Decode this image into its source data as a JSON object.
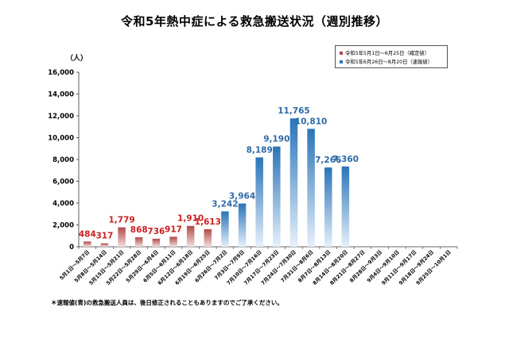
{
  "title": "令和5年熱中症による救急搬送状況（週別推移）",
  "unit_label": "（人）",
  "footnote": "＊速報値(青)の救急搬送人員は、後日修正されることもありますのでご了承ください。",
  "legend": {
    "confirmed": "令和5年5月1日～6月25日（確定値）",
    "preliminary": "令和5年6月26日～8月20日（速報値）"
  },
  "colors": {
    "confirmed_label": "#cc1f1f",
    "preliminary_label": "#2e6aa8",
    "confirmed_bar_top": "#b04a47",
    "confirmed_bar_bottom": "#f3dede",
    "preliminary_bar_top": "#2a74b8",
    "preliminary_bar_bottom": "#e6f0fa"
  },
  "chart_data": {
    "type": "bar",
    "title": "令和5年熱中症による救急搬送状況（週別推移）",
    "ylabel": "（人）",
    "ylim": [
      0,
      16000
    ],
    "yticks": [
      0,
      2000,
      4000,
      6000,
      8000,
      10000,
      12000,
      14000,
      16000
    ],
    "ytick_labels": [
      "0",
      "2,000",
      "4,000",
      "6,000",
      "8,000",
      "10,000",
      "12,000",
      "14,000",
      "16,000"
    ],
    "grid": false,
    "legend_position": "top-right",
    "categories": [
      "5月1日～5月7日",
      "5月8日～5月14日",
      "5月15日～5月21日",
      "5月22日～5月28日",
      "5月29日～6月4日",
      "6月5日～6月11日",
      "6月12日～6月18日",
      "6月19日～6月25日",
      "6月26日～7月2日",
      "7月3日～7月9日",
      "7月10日～7月16日",
      "7月17日～7月23日",
      "7月24日～7月30日",
      "7月31日～8月6日",
      "8月7日～8月13日",
      "8月14日～8月20日",
      "8月21日～8月27日",
      "8月28日～9月3日",
      "9月4日～9月10日",
      "9月11日～9月17日",
      "9月18日～9月24日",
      "9月25日～10月1日"
    ],
    "series": [
      {
        "name": "令和5年5月1日～6月25日（確定値）",
        "values": [
          484,
          317,
          1779,
          868,
          736,
          917,
          1910,
          1613,
          null,
          null,
          null,
          null,
          null,
          null,
          null,
          null,
          null,
          null,
          null,
          null,
          null,
          null
        ]
      },
      {
        "name": "令和5年6月26日～8月20日（速報値）",
        "values": [
          null,
          null,
          null,
          null,
          null,
          null,
          null,
          null,
          3242,
          3964,
          8189,
          9190,
          11765,
          10810,
          7266,
          7360,
          null,
          null,
          null,
          null,
          null,
          null
        ]
      }
    ],
    "data_labels": [
      "484",
      "317",
      "1,779",
      "868",
      "736",
      "917",
      "1,910",
      "1,613",
      "3,242",
      "3,964",
      "8,189",
      "9,190",
      "11,765",
      "10,810",
      "7,266",
      "7,360",
      "",
      "",
      "",
      "",
      "",
      ""
    ]
  }
}
